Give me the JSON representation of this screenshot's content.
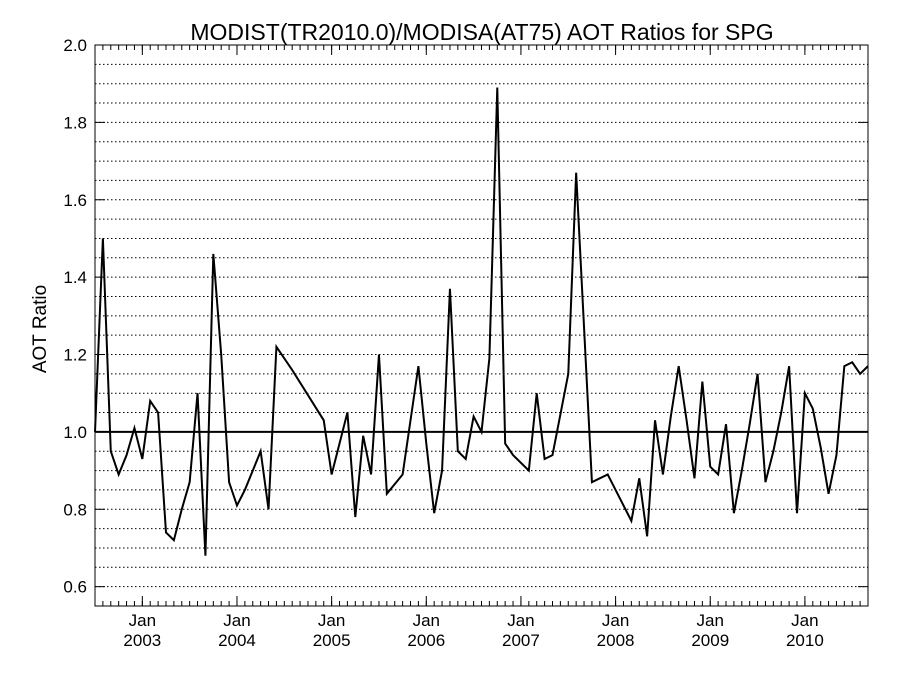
{
  "chart_data": {
    "type": "line",
    "title": "MODIST(TR2010.0)/MODISA(AT75)  AOT Ratios for SPG",
    "ylabel": "AOT Ratio",
    "xlabel": "",
    "ylim": [
      0.55,
      2.0
    ],
    "xlim": [
      "2002-07",
      "2010-09"
    ],
    "yticks": [
      "0.6",
      "0.8",
      "1.0",
      "1.2",
      "1.4",
      "1.6",
      "1.8",
      "2.0"
    ],
    "grid": "dotted-horizontal",
    "reference_line": 1.0,
    "xticks": [
      {
        "month": "Jan",
        "year": "2003",
        "date": "2003-01"
      },
      {
        "month": "Jan",
        "year": "2004",
        "date": "2004-01"
      },
      {
        "month": "Jan",
        "year": "2005",
        "date": "2005-01"
      },
      {
        "month": "Jan",
        "year": "2006",
        "date": "2006-01"
      },
      {
        "month": "Jan",
        "year": "2007",
        "date": "2007-01"
      },
      {
        "month": "Jan",
        "year": "2008",
        "date": "2008-01"
      },
      {
        "month": "Jan",
        "year": "2009",
        "date": "2009-01"
      },
      {
        "month": "Jan",
        "year": "2010",
        "date": "2010-01"
      }
    ],
    "series": [
      {
        "x": [
          "2002-07",
          "2002-08",
          "2002-09",
          "2002-10",
          "2002-11",
          "2002-12",
          "2003-01",
          "2003-02",
          "2003-03",
          "2003-04",
          "2003-05",
          "2003-06",
          "2003-07",
          "2003-08",
          "2003-09",
          "2003-10",
          "2003-11",
          "2003-12",
          "2004-01",
          "2004-02",
          "2004-03",
          "2004-04",
          "2004-05",
          "2004-06",
          "2004-08",
          "2004-12",
          "2005-01",
          "2005-03",
          "2005-04",
          "2005-05",
          "2005-06",
          "2005-07",
          "2005-08",
          "2005-10",
          "2005-12",
          "2006-01",
          "2006-02",
          "2006-03",
          "2006-04",
          "2006-05",
          "2006-06",
          "2006-07",
          "2006-08",
          "2006-09",
          "2006-10",
          "2006-11",
          "2006-12",
          "2007-02",
          "2007-03",
          "2007-04",
          "2007-05",
          "2007-07",
          "2007-08",
          "2007-10",
          "2007-12",
          "2008-01",
          "2008-02",
          "2008-03",
          "2008-04",
          "2008-05",
          "2008-06",
          "2008-07",
          "2008-08",
          "2008-09",
          "2008-10",
          "2008-11",
          "2008-12",
          "2009-01",
          "2009-02",
          "2009-03",
          "2009-04",
          "2009-05",
          "2009-06",
          "2009-07",
          "2009-08",
          "2009-09",
          "2009-10",
          "2009-11",
          "2009-12",
          "2010-01",
          "2010-02",
          "2010-03",
          "2010-04",
          "2010-05",
          "2010-06",
          "2010-07",
          "2010-08",
          "2010-09"
        ],
        "y": [
          1.0,
          1.5,
          0.95,
          0.89,
          0.94,
          1.01,
          0.93,
          1.08,
          1.05,
          0.74,
          0.72,
          0.8,
          0.87,
          1.1,
          0.68,
          1.46,
          1.2,
          0.87,
          0.81,
          0.85,
          0.9,
          0.95,
          0.8,
          1.22,
          1.16,
          1.03,
          0.89,
          1.05,
          0.78,
          0.99,
          0.89,
          1.2,
          0.84,
          0.89,
          1.17,
          0.97,
          0.79,
          0.9,
          1.37,
          0.95,
          0.93,
          1.04,
          1.0,
          1.19,
          1.89,
          0.97,
          0.94,
          0.9,
          1.1,
          0.93,
          0.94,
          1.15,
          1.67,
          0.87,
          0.89,
          0.85,
          0.81,
          0.77,
          0.88,
          0.73,
          1.03,
          0.89,
          1.04,
          1.17,
          1.03,
          0.88,
          1.13,
          0.91,
          0.89,
          1.02,
          0.79,
          0.9,
          1.02,
          1.15,
          0.87,
          0.95,
          1.05,
          1.17,
          0.79,
          1.1,
          1.06,
          0.96,
          0.84,
          0.94,
          1.17,
          1.18,
          1.15,
          1.17
        ]
      }
    ]
  }
}
